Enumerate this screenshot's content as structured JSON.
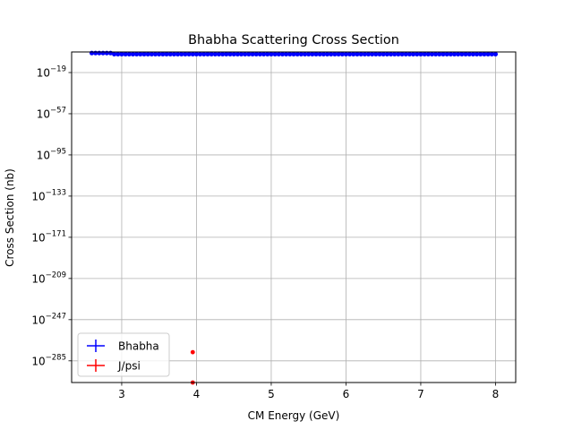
{
  "chart_data": {
    "type": "scatter",
    "title": "Bhabha Scattering Cross Section",
    "xlabel": "CM Energy (GeV)",
    "ylabel": "Cross Section (nb)",
    "xlim": [
      2.33,
      8.27
    ],
    "ylim": [
      1e-305,
      1.0
    ],
    "yscale": "log",
    "grid": true,
    "legend_position": "lower-left",
    "x_ticks": [
      {
        "value": 3,
        "label": "3"
      },
      {
        "value": 4,
        "label": "4"
      },
      {
        "value": 5,
        "label": "5"
      },
      {
        "value": 6,
        "label": "6"
      },
      {
        "value": 7,
        "label": "7"
      },
      {
        "value": 8,
        "label": "8"
      }
    ],
    "y_ticks": [
      {
        "exp": -19,
        "base": "10",
        "sup": "−19"
      },
      {
        "exp": -57,
        "base": "10",
        "sup": "−57"
      },
      {
        "exp": -95,
        "base": "10",
        "sup": "−95"
      },
      {
        "exp": -133,
        "base": "10",
        "sup": "−133"
      },
      {
        "exp": -171,
        "base": "10",
        "sup": "−171"
      },
      {
        "exp": -209,
        "base": "10",
        "sup": "−209"
      },
      {
        "exp": -247,
        "base": "10",
        "sup": "−247"
      },
      {
        "exp": -285,
        "base": "10",
        "sup": "−285"
      }
    ],
    "series": [
      {
        "name": "Bhabha",
        "color": "#0000ff",
        "x_start": 2.6,
        "x_end": 8.0,
        "n_points": 109,
        "log10_y_early": -1,
        "log10_y_late": -2,
        "x_break": 2.87
      },
      {
        "name": "J/psi",
        "color": "#ff0000",
        "points": [
          {
            "x": 3.95,
            "log10_y": -277
          },
          {
            "x": 3.95,
            "log10_y": -305
          }
        ]
      }
    ]
  }
}
